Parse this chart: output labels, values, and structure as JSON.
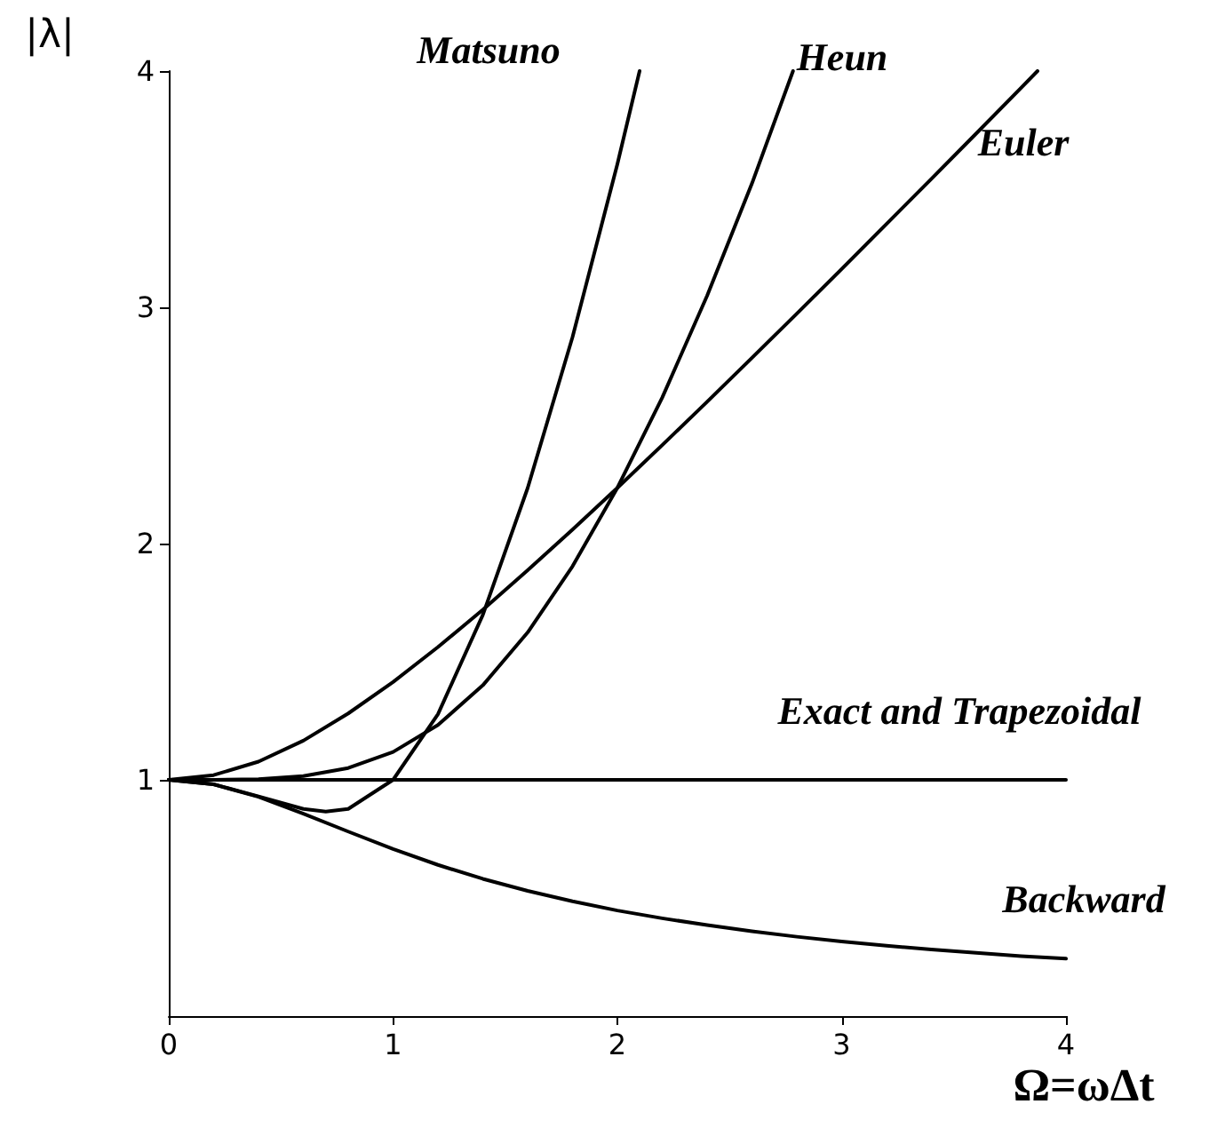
{
  "chart_data": {
    "type": "line",
    "xlabel": "Ω=ωΔt",
    "ylabel": "|λ|",
    "xlim": [
      0,
      4
    ],
    "ylim": [
      0,
      4
    ],
    "xticks": [
      0,
      1,
      2,
      3,
      4
    ],
    "yticks": [
      1,
      2,
      3,
      4
    ],
    "grid": false,
    "marker": "none",
    "line_style": "solid",
    "series": [
      {
        "color": "#000000",
        "x": [
          0,
          0.2,
          0.4,
          0.6,
          0.7,
          0.8,
          1,
          1.2,
          1.4,
          1.6,
          1.8,
          2,
          2.099
        ],
        "values": [
          1,
          0.981,
          0.93,
          0.877,
          0.866,
          0.877,
          1,
          1.278,
          1.698,
          2.235,
          2.874,
          3.606,
          4
        ]
      },
      {
        "color": "#000000",
        "x": [
          0,
          0.2,
          0.4,
          0.6,
          0.8,
          1,
          1.2,
          1.4,
          1.6,
          1.8,
          2,
          2.2,
          2.4,
          2.6,
          2.783
        ],
        "values": [
          1,
          1,
          1.003,
          1.016,
          1.05,
          1.118,
          1.232,
          1.4,
          1.624,
          1.904,
          2.236,
          2.618,
          3.049,
          3.524,
          4
        ]
      },
      {
        "color": "#000000",
        "x": [
          0,
          0.2,
          0.4,
          0.6,
          0.8,
          1,
          1.2,
          1.4,
          1.6,
          1.8,
          2,
          2.2,
          2.4,
          2.6,
          2.8,
          3,
          3.2,
          3.4,
          3.6,
          3.8,
          3.873
        ],
        "values": [
          1,
          1.02,
          1.077,
          1.166,
          1.281,
          1.414,
          1.562,
          1.72,
          1.887,
          2.059,
          2.236,
          2.417,
          2.6,
          2.786,
          2.973,
          3.162,
          3.353,
          3.544,
          3.736,
          3.929,
          4
        ]
      },
      {
        "color": "#000000",
        "x": [
          0,
          4
        ],
        "values": [
          1,
          1
        ]
      },
      {
        "color": "#000000",
        "x": [
          0,
          0.2,
          0.4,
          0.6,
          0.8,
          1,
          1.2,
          1.4,
          1.6,
          1.8,
          2,
          2.2,
          2.4,
          2.6,
          2.8,
          3,
          3.2,
          3.4,
          3.6,
          3.8,
          4
        ],
        "values": [
          1,
          0.981,
          0.928,
          0.857,
          0.781,
          0.707,
          0.64,
          0.581,
          0.53,
          0.486,
          0.447,
          0.414,
          0.385,
          0.359,
          0.336,
          0.316,
          0.298,
          0.282,
          0.268,
          0.254,
          0.243
        ]
      }
    ],
    "annotations": [
      "Matsuno",
      "Heun",
      "Euler",
      "Exact and Trapezoidal",
      "Backward"
    ]
  }
}
